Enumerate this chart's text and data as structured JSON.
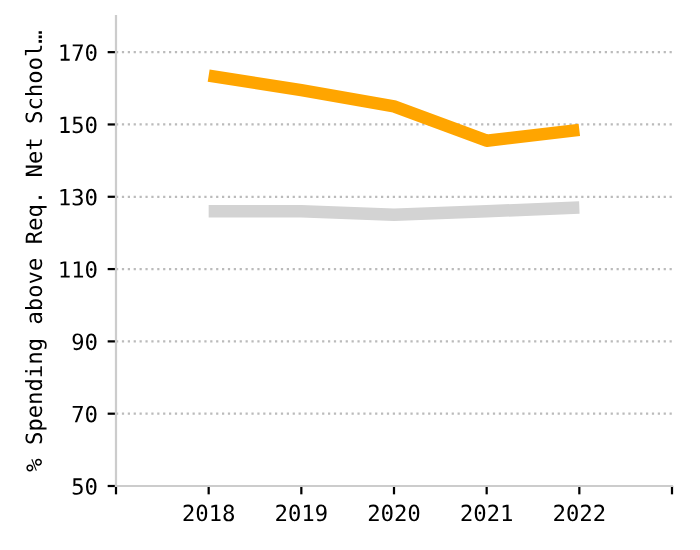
{
  "chart_data": {
    "type": "line",
    "ylabel": "% Spending above Req. Net School…",
    "x": [
      2018,
      2019,
      2020,
      2021,
      2022
    ],
    "xlim": [
      2017,
      2023
    ],
    "xticks": [
      {
        "value": 2017,
        "label": null
      },
      2018,
      2019,
      2020,
      2021,
      2022,
      {
        "value": 2023,
        "label": null
      }
    ],
    "ylim": [
      50,
      180
    ],
    "yticks": [
      50,
      70,
      90,
      110,
      130,
      150,
      170
    ],
    "grid": "y",
    "legend": false,
    "marker": "none",
    "line_style": "solid",
    "series": [
      {
        "color": "#ffa500",
        "values": [
          163.5,
          159.5,
          155,
          145.5,
          148.5
        ]
      },
      {
        "color": "#d3d3d3",
        "values": [
          126,
          126,
          125,
          126,
          127
        ]
      }
    ]
  }
}
